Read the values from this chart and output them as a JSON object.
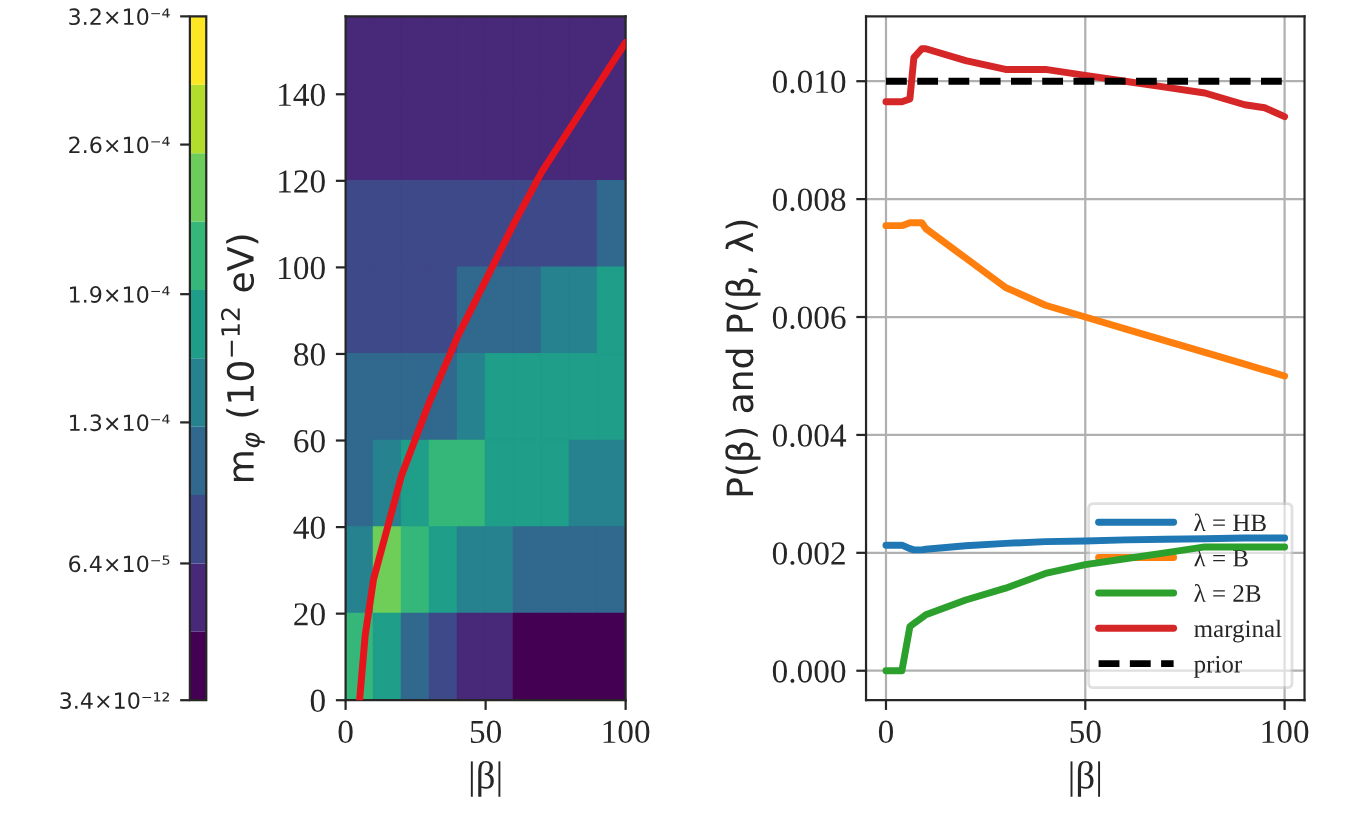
{
  "chart_data": [
    {
      "type": "scatter",
      "xlabel": "|β|",
      "ylabel": "m$_{φ}$ (10$^{−12}$ eV)",
      "clim": [
        3.4e-12,
        0.00032
      ],
      "cticks": [
        {
          "value": 3.4e-12,
          "label": "3.4×10⁻¹²"
        },
        {
          "value": 6.4e-05,
          "label": "6.4×10⁻⁵"
        },
        {
          "value": 0.00013,
          "label": "1.3×10⁻⁴"
        },
        {
          "value": 0.00019,
          "label": "1.9×10⁻⁴"
        },
        {
          "value": 0.00026,
          "label": "2.6×10⁻⁴"
        },
        {
          "value": 0.00032,
          "label": "3.2×10⁻⁴"
        }
      ],
      "xlim": [
        0,
        100
      ],
      "xticks": [
        0,
        50,
        100
      ],
      "ylim": [
        0,
        158
      ],
      "yticks": [
        0,
        20,
        40,
        60,
        80,
        100,
        120,
        140
      ],
      "series": [
        {
          "type": "scatter",
          "marker": "square",
          "x": [
            5,
            15,
            25,
            35,
            45,
            55,
            65,
            75,
            85,
            95,
            5,
            15,
            25,
            35,
            45,
            55,
            65,
            75,
            85,
            95,
            5,
            15,
            25,
            35,
            45,
            55,
            65,
            75,
            85,
            95,
            5,
            15,
            25,
            35,
            45,
            55,
            65,
            75,
            85,
            95,
            5,
            15,
            25,
            35,
            45,
            55,
            65,
            75,
            85,
            95,
            5,
            15,
            25,
            35,
            45,
            55,
            65,
            75,
            85,
            95,
            5,
            15,
            25,
            35,
            45,
            55,
            65,
            75,
            85,
            95,
            5,
            15,
            25,
            35,
            45,
            55,
            65,
            75,
            85,
            95
          ],
          "values": [
            150,
            150,
            150,
            150,
            150,
            150,
            150,
            150,
            150,
            150,
            130,
            130,
            130,
            130,
            130,
            130,
            130,
            130,
            130,
            130,
            110,
            110,
            110,
            110,
            110,
            110,
            110,
            110,
            110,
            110,
            90,
            90,
            90,
            90,
            90,
            90,
            90,
            90,
            90,
            90,
            70,
            70,
            70,
            70,
            70,
            70,
            70,
            70,
            70,
            70,
            50,
            50,
            50,
            50,
            50,
            50,
            50,
            50,
            50,
            50,
            30,
            30,
            30,
            30,
            30,
            30,
            30,
            30,
            30,
            30,
            10,
            10,
            10,
            10,
            10,
            10,
            10,
            10,
            10,
            10
          ],
          "cvalues": [
            4.8e-05,
            4.8e-05,
            4.8e-05,
            4.8e-05,
            4.8e-05,
            4.8e-05,
            4.8e-05,
            4.8e-05,
            4.8e-05,
            4.8e-05,
            4.8e-05,
            4.8e-05,
            4.8e-05,
            4.8e-05,
            4.8e-05,
            4.8e-05,
            4.8e-05,
            4.8e-05,
            4.8e-05,
            4.8e-05,
            8e-05,
            8e-05,
            8e-05,
            8e-05,
            8e-05,
            8e-05,
            8e-05,
            8e-05,
            8e-05,
            0.000112,
            8e-05,
            8e-05,
            8e-05,
            8e-05,
            0.000112,
            0.000112,
            0.000112,
            0.000144,
            0.000144,
            0.000176,
            0.000112,
            0.000112,
            0.000112,
            0.000112,
            0.000144,
            0.000176,
            0.000176,
            0.000176,
            0.000176,
            0.000176,
            0.000112,
            0.000144,
            0.000176,
            0.000208,
            0.000208,
            0.000176,
            0.000176,
            0.000176,
            0.000144,
            0.000144,
            0.000144,
            0.00024,
            0.000208,
            0.000176,
            0.000144,
            0.000144,
            0.000112,
            0.000112,
            0.000112,
            0.000112,
            0.000208,
            0.000176,
            0.000112,
            8e-05,
            4.8e-05,
            4.8e-05,
            1.6e-05,
            1.6e-05,
            1.6e-05,
            1.6e-05
          ],
          "colors": [
            "#482878",
            "#482878",
            "#482878",
            "#482878",
            "#482878",
            "#482878",
            "#482878",
            "#482878",
            "#482878",
            "#482878",
            "#482878",
            "#482878",
            "#482878",
            "#482878",
            "#482878",
            "#482878",
            "#482878",
            "#482878",
            "#482878",
            "#482878",
            "#3e4989",
            "#3e4989",
            "#3e4989",
            "#3e4989",
            "#3e4989",
            "#3e4989",
            "#3e4989",
            "#3e4989",
            "#3e4989",
            "#31688e",
            "#3e4989",
            "#3e4989",
            "#3e4989",
            "#3e4989",
            "#31688e",
            "#31688e",
            "#31688e",
            "#26828e",
            "#26828e",
            "#1f9e89",
            "#31688e",
            "#31688e",
            "#31688e",
            "#31688e",
            "#26828e",
            "#1f9e89",
            "#1f9e89",
            "#1f9e89",
            "#1f9e89",
            "#1f9e89",
            "#31688e",
            "#26828e",
            "#1f9e89",
            "#35b779",
            "#35b779",
            "#1f9e89",
            "#1f9e89",
            "#1f9e89",
            "#26828e",
            "#26828e",
            "#26828e",
            "#6ece58",
            "#35b779",
            "#1f9e89",
            "#26828e",
            "#26828e",
            "#31688e",
            "#31688e",
            "#31688e",
            "#31688e",
            "#35b779",
            "#1f9e89",
            "#31688e",
            "#3e4989",
            "#482878",
            "#482878",
            "#440154",
            "#440154",
            "#440154",
            "#440154"
          ]
        },
        {
          "type": "line",
          "color": "#e8141b",
          "x": [
            5,
            7,
            10,
            15,
            20,
            30,
            40,
            50,
            60,
            70,
            80,
            90,
            100
          ],
          "values": [
            0,
            15,
            28,
            40,
            52,
            69,
            84,
            97,
            110,
            122,
            132,
            142,
            152
          ]
        }
      ]
    },
    {
      "type": "line",
      "xlabel": "|β|",
      "ylabel": "P(β) and P(β, λ)",
      "xlim": [
        -5,
        105
      ],
      "xticks": [
        0,
        50,
        100
      ],
      "ylim": [
        -0.0005,
        0.0111
      ],
      "yticks": [
        {
          "value": 0,
          "label": "0.000"
        },
        {
          "value": 0.002,
          "label": "0.002"
        },
        {
          "value": 0.004,
          "label": "0.004"
        },
        {
          "value": 0.006,
          "label": "0.006"
        },
        {
          "value": 0.008,
          "label": "0.008"
        },
        {
          "value": 0.01,
          "label": "0.010"
        }
      ],
      "x": [
        0,
        4,
        6,
        7,
        9,
        10,
        20,
        30,
        40,
        50,
        60,
        70,
        80,
        90,
        95,
        100
      ],
      "grid": true,
      "legend": "bottom right",
      "series": [
        {
          "name": "λ = HB",
          "color": "#1f77b4",
          "values": [
            0.00213,
            0.00213,
            0.00207,
            0.00205,
            0.00205,
            0.00206,
            0.00212,
            0.00216,
            0.00219,
            0.0022,
            0.00222,
            0.00223,
            0.00224,
            0.00225,
            0.00225,
            0.00225
          ]
        },
        {
          "name": "λ = B",
          "color": "#ff7f0e",
          "values": [
            0.00755,
            0.00755,
            0.0076,
            0.0076,
            0.0076,
            0.0075,
            0.007,
            0.0065,
            0.0062,
            0.006,
            0.0058,
            0.0056,
            0.0054,
            0.0052,
            0.0051,
            0.005
          ]
        },
        {
          "name": "λ = 2B",
          "color": "#2ca02c",
          "values": [
            0,
            0,
            0.00075,
            0.0008,
            0.0009,
            0.00095,
            0.0012,
            0.0014,
            0.00165,
            0.0018,
            0.0019,
            0.002,
            0.0021,
            0.0021,
            0.0021,
            0.0021
          ]
        },
        {
          "name": "marginal",
          "color": "#d62728",
          "values": [
            0.00965,
            0.00965,
            0.0097,
            0.0104,
            0.01055,
            0.01055,
            0.01035,
            0.0102,
            0.0102,
            0.0101,
            0.01,
            0.0099,
            0.0098,
            0.0096,
            0.00955,
            0.0094
          ]
        },
        {
          "name": "prior",
          "color": "#000000",
          "line_style": "dashed",
          "values": [
            0.01,
            0.01,
            0.01,
            0.01,
            0.01,
            0.01,
            0.01,
            0.01,
            0.01,
            0.01,
            0.01,
            0.01,
            0.01,
            0.01,
            0.01,
            0.01
          ]
        }
      ]
    }
  ]
}
